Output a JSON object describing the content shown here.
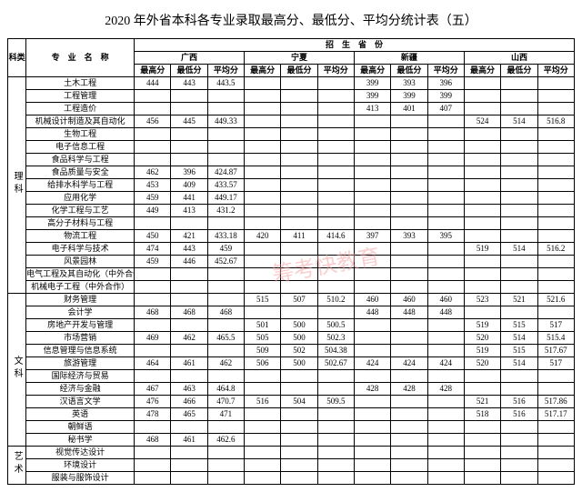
{
  "title": "2020 年外省本科各专业录取最高分、最低分、平均分统计表（五）",
  "header": {
    "category": "科类",
    "major": "专　业　名　称",
    "province_group": "招　生　省　份",
    "provinces": [
      "广西",
      "宁夏",
      "新疆",
      "山西"
    ],
    "cols": [
      "最高分",
      "最低分",
      "平均分"
    ]
  },
  "watermark": "筹考快教育",
  "groups": [
    {
      "name": "理科",
      "majors": [
        {
          "n": "土木工程",
          "v": [
            "444",
            "443",
            "443.5",
            "",
            "",
            "",
            "399",
            "393",
            "396",
            "",
            "",
            ""
          ]
        },
        {
          "n": "工程管理",
          "v": [
            "",
            "",
            "",
            "",
            "",
            "",
            "399",
            "399",
            "399",
            "",
            "",
            ""
          ]
        },
        {
          "n": "工程造价",
          "v": [
            "",
            "",
            "",
            "",
            "",
            "",
            "413",
            "401",
            "407",
            "",
            "",
            ""
          ]
        },
        {
          "n": "机械设计制造及其自动化",
          "v": [
            "456",
            "445",
            "449.33",
            "",
            "",
            "",
            "",
            "",
            "",
            "524",
            "514",
            "516.8"
          ]
        },
        {
          "n": "生物工程",
          "v": [
            "",
            "",
            "",
            "",
            "",
            "",
            "",
            "",
            "",
            "",
            "",
            ""
          ]
        },
        {
          "n": "电子信息工程",
          "v": [
            "",
            "",
            "",
            "",
            "",
            "",
            "",
            "",
            "",
            "",
            "",
            ""
          ]
        },
        {
          "n": "食品科学与工程",
          "v": [
            "",
            "",
            "",
            "",
            "",
            "",
            "",
            "",
            "",
            "",
            "",
            ""
          ]
        },
        {
          "n": "食品质量与安全",
          "v": [
            "462",
            "396",
            "424.87",
            "",
            "",
            "",
            "",
            "",
            "",
            "",
            "",
            ""
          ]
        },
        {
          "n": "给排水科学与工程",
          "v": [
            "453",
            "409",
            "433.57",
            "",
            "",
            "",
            "",
            "",
            "",
            "",
            "",
            ""
          ]
        },
        {
          "n": "应用化学",
          "v": [
            "459",
            "441",
            "449.17",
            "",
            "",
            "",
            "",
            "",
            "",
            "",
            "",
            ""
          ]
        },
        {
          "n": "化学工程与工艺",
          "v": [
            "449",
            "413",
            "431.2",
            "",
            "",
            "",
            "",
            "",
            "",
            "",
            "",
            ""
          ]
        },
        {
          "n": "高分子材料与工程",
          "v": [
            "",
            "",
            "",
            "",
            "",
            "",
            "",
            "",
            "",
            "",
            "",
            ""
          ]
        },
        {
          "n": "物流工程",
          "v": [
            "450",
            "421",
            "433.18",
            "420",
            "411",
            "414.6",
            "397",
            "393",
            "395",
            "",
            "",
            ""
          ]
        },
        {
          "n": "电子科学与技术",
          "v": [
            "474",
            "443",
            "459",
            "",
            "",
            "",
            "",
            "",
            "",
            "519",
            "514",
            "516.2"
          ]
        },
        {
          "n": "风景园林",
          "v": [
            "459",
            "446",
            "452.67",
            "",
            "",
            "",
            "",
            "",
            "",
            "",
            "",
            ""
          ]
        },
        {
          "n": "电气工程及其自动化（中外合作）",
          "v": [
            "",
            "",
            "",
            "",
            "",
            "",
            "",
            "",
            "",
            "",
            "",
            ""
          ]
        },
        {
          "n": "机械电子工程（中外合作）",
          "v": [
            "",
            "",
            "",
            "",
            "",
            "",
            "",
            "",
            "",
            "",
            "",
            ""
          ]
        }
      ]
    },
    {
      "name": "文科",
      "majors": [
        {
          "n": "财务管理",
          "v": [
            "",
            "",
            "",
            "515",
            "507",
            "510.2",
            "460",
            "460",
            "460",
            "523",
            "521",
            "521.6"
          ]
        },
        {
          "n": "会计学",
          "v": [
            "468",
            "468",
            "468",
            "",
            "",
            "",
            "448",
            "448",
            "448",
            "",
            "",
            ""
          ]
        },
        {
          "n": "房地产开发与管理",
          "v": [
            "",
            "",
            "",
            "501",
            "500",
            "500.5",
            "",
            "",
            "",
            "519",
            "515",
            "517"
          ]
        },
        {
          "n": "市场营销",
          "v": [
            "469",
            "462",
            "465.5",
            "505",
            "500",
            "502.3",
            "",
            "",
            "",
            "520",
            "514",
            "515.4"
          ]
        },
        {
          "n": "信息管理与信息系统",
          "v": [
            "",
            "",
            "",
            "509",
            "502",
            "504.38",
            "",
            "",
            "",
            "519",
            "515",
            "517.67"
          ]
        },
        {
          "n": "旅游管理",
          "v": [
            "464",
            "461",
            "462",
            "506",
            "500",
            "502.67",
            "424",
            "424",
            "424",
            "520",
            "514",
            "517"
          ]
        },
        {
          "n": "国际经济与贸易",
          "v": [
            "",
            "",
            "",
            "",
            "",
            "",
            "",
            "",
            "",
            "",
            "",
            ""
          ]
        },
        {
          "n": "经济与金融",
          "v": [
            "467",
            "463",
            "464.8",
            "",
            "",
            "",
            "428",
            "428",
            "428",
            "",
            "",
            ""
          ]
        },
        {
          "n": "汉语言文学",
          "v": [
            "476",
            "466",
            "470.7",
            "516",
            "504",
            "509.5",
            "",
            "",
            "",
            "521",
            "516",
            "517.86"
          ]
        },
        {
          "n": "英语",
          "v": [
            "478",
            "465",
            "471",
            "",
            "",
            "",
            "",
            "",
            "",
            "518",
            "516",
            "517.17"
          ]
        },
        {
          "n": "朝鲜语",
          "v": [
            "",
            "",
            "",
            "",
            "",
            "",
            "",
            "",
            "",
            "",
            "",
            ""
          ]
        },
        {
          "n": "秘书学",
          "v": [
            "468",
            "461",
            "462.6",
            "",
            "",
            "",
            "",
            "",
            "",
            "",
            "",
            ""
          ]
        }
      ]
    },
    {
      "name": "艺术",
      "majors": [
        {
          "n": "视觉传达设计",
          "v": [
            "",
            "",
            "",
            "",
            "",
            "",
            "",
            "",
            "",
            "",
            "",
            ""
          ]
        },
        {
          "n": "环境设计",
          "v": [
            "",
            "",
            "",
            "",
            "",
            "",
            "",
            "",
            "",
            "",
            "",
            ""
          ]
        },
        {
          "n": "服装与服饰设计",
          "v": [
            "",
            "",
            "",
            "",
            "",
            "",
            "",
            "",
            "",
            "",
            "",
            ""
          ]
        }
      ]
    }
  ]
}
